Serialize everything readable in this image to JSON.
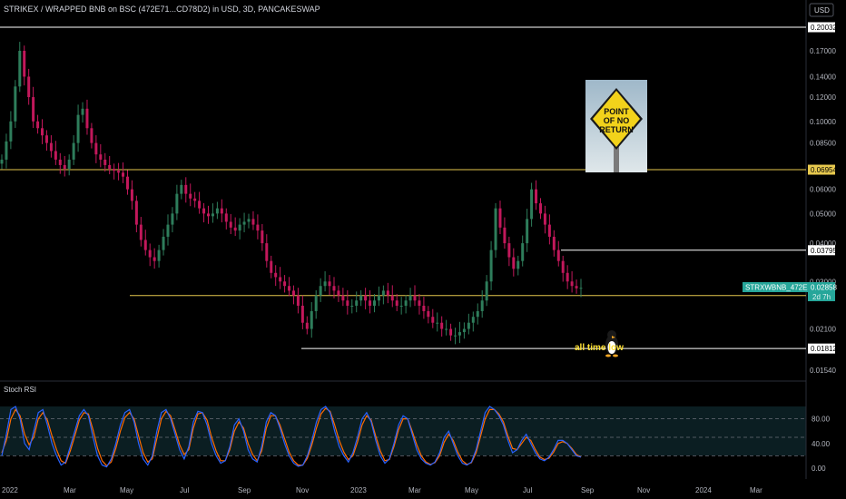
{
  "header": {
    "title": "STRIKEX / WRAPPED BNB on BSC (472E71...CD78D2) in USD, 3D, PANCAKESWAP",
    "currency_button": "USD"
  },
  "sign": {
    "line1": "POINT",
    "line2": "OF NO",
    "line3": "RETURN"
  },
  "annotation": {
    "text": "all time low"
  },
  "indicator": {
    "label": "Stoch RSI"
  },
  "price_tag": {
    "symbol": "STRXWBNB_472E71.USD",
    "value": "0.02858",
    "countdown": "2d 7h"
  },
  "colors": {
    "background": "#000000",
    "up": "#26a69a",
    "down": "#ef5350",
    "candle_up": "#2e7d5b",
    "candle_down": "#c2185b",
    "k_line": "#2962ff",
    "d_line": "#ff6d00",
    "yellow_level": "#e6c84e",
    "white_level": "#ffffff",
    "axis_text": "#b2b5be"
  },
  "chart_data": {
    "type": "candlestick",
    "title": "STRIKEX / WRAPPED BNB on BSC (472E71...CD78D2) in USD, 3D, PANCAKESWAP",
    "price_axis": {
      "scale": "log",
      "ticks": [
        "0.17000",
        "0.14000",
        "0.12000",
        "0.10000",
        "0.08500",
        "0.06000",
        "0.05000",
        "0.04000",
        "0.03000",
        "0.02100",
        "0.01540"
      ]
    },
    "time_axis": {
      "ticks": [
        "2022",
        "Mar",
        "May",
        "Jul",
        "Sep",
        "Nov",
        "2023",
        "Mar",
        "May",
        "Jul",
        "Sep",
        "Nov",
        "2024",
        "Mar"
      ]
    },
    "levels": [
      {
        "value": 0.20032,
        "label": "0.20032",
        "color": "#ffffff",
        "style": "white"
      },
      {
        "value": 0.06954,
        "label": "0.06954",
        "color": "#e6c84e",
        "style": "yellow"
      },
      {
        "value": 0.03795,
        "label": "0.03795",
        "color": "#ffffff",
        "style": "white"
      },
      {
        "value": 0.027,
        "label": "0.02700",
        "color": "#e6c84e",
        "style": "yellow"
      },
      {
        "value": 0.01812,
        "label": "0.01812",
        "color": "#ffffff",
        "style": "white"
      }
    ],
    "last_price": 0.02858,
    "close_series": [
      0.075,
      0.086,
      0.1,
      0.13,
      0.17,
      0.14,
      0.12,
      0.1,
      0.095,
      0.09,
      0.085,
      0.08,
      0.075,
      0.072,
      0.07,
      0.075,
      0.085,
      0.105,
      0.11,
      0.095,
      0.085,
      0.078,
      0.075,
      0.072,
      0.07,
      0.069,
      0.068,
      0.066,
      0.06,
      0.055,
      0.046,
      0.041,
      0.038,
      0.036,
      0.035,
      0.038,
      0.042,
      0.046,
      0.05,
      0.058,
      0.062,
      0.058,
      0.056,
      0.055,
      0.052,
      0.05,
      0.049,
      0.05,
      0.052,
      0.05,
      0.047,
      0.045,
      0.044,
      0.046,
      0.047,
      0.048,
      0.046,
      0.044,
      0.04,
      0.035,
      0.032,
      0.031,
      0.03,
      0.029,
      0.028,
      0.027,
      0.025,
      0.022,
      0.021,
      0.024,
      0.027,
      0.029,
      0.03,
      0.029,
      0.028,
      0.027,
      0.026,
      0.025,
      0.025,
      0.026,
      0.027,
      0.026,
      0.025,
      0.026,
      0.027,
      0.028,
      0.027,
      0.026,
      0.025,
      0.025,
      0.026,
      0.027,
      0.026,
      0.025,
      0.024,
      0.023,
      0.022,
      0.022,
      0.021,
      0.021,
      0.02,
      0.02,
      0.0205,
      0.021,
      0.022,
      0.023,
      0.024,
      0.026,
      0.03,
      0.038,
      0.052,
      0.045,
      0.04,
      0.036,
      0.033,
      0.035,
      0.04,
      0.048,
      0.06,
      0.054,
      0.05,
      0.046,
      0.042,
      0.038,
      0.035,
      0.032,
      0.03,
      0.029,
      0.0285,
      0.0286
    ],
    "stoch_rsi": {
      "levels": [
        80,
        50,
        20
      ],
      "ticks": [
        "80.00",
        "40.00",
        "0.00"
      ],
      "k": [
        20,
        55,
        95,
        100,
        80,
        40,
        30,
        60,
        90,
        95,
        70,
        40,
        20,
        5,
        10,
        35,
        60,
        85,
        95,
        85,
        50,
        20,
        5,
        2,
        15,
        40,
        70,
        90,
        95,
        75,
        40,
        15,
        5,
        20,
        60,
        90,
        95,
        80,
        55,
        30,
        15,
        35,
        75,
        92,
        90,
        70,
        40,
        20,
        8,
        12,
        35,
        70,
        80,
        60,
        30,
        15,
        10,
        35,
        75,
        90,
        85,
        65,
        40,
        20,
        8,
        3,
        5,
        20,
        45,
        75,
        95,
        100,
        90,
        60,
        35,
        20,
        10,
        25,
        50,
        80,
        90,
        75,
        45,
        20,
        8,
        15,
        40,
        70,
        85,
        80,
        55,
        30,
        15,
        8,
        5,
        10,
        25,
        50,
        60,
        40,
        20,
        8,
        5,
        10,
        30,
        60,
        90,
        100,
        95,
        85,
        70,
        45,
        25,
        30,
        45,
        55,
        40,
        25,
        15,
        12,
        18,
        30,
        45,
        45,
        40,
        30,
        20,
        18
      ],
      "d": [
        25,
        45,
        80,
        95,
        85,
        55,
        38,
        50,
        80,
        90,
        78,
        52,
        30,
        12,
        8,
        28,
        52,
        78,
        90,
        88,
        62,
        32,
        12,
        4,
        10,
        32,
        60,
        82,
        90,
        80,
        52,
        25,
        10,
        15,
        48,
        80,
        92,
        85,
        62,
        38,
        22,
        30,
        65,
        88,
        90,
        78,
        50,
        28,
        12,
        12,
        30,
        60,
        75,
        65,
        40,
        22,
        12,
        28,
        65,
        85,
        85,
        70,
        48,
        26,
        12,
        5,
        5,
        16,
        38,
        65,
        88,
        97,
        92,
        70,
        45,
        26,
        14,
        20,
        42,
        70,
        85,
        78,
        52,
        28,
        12,
        14,
        35,
        62,
        80,
        80,
        60,
        38,
        20,
        10,
        6,
        9,
        20,
        42,
        55,
        45,
        26,
        12,
        6,
        9,
        25,
        52,
        80,
        95,
        95,
        88,
        75,
        52,
        32,
        30,
        40,
        50,
        45,
        30,
        18,
        14,
        16,
        26,
        40,
        43,
        40,
        32,
        22,
        18
      ],
      "label": "Stoch RSI"
    }
  }
}
